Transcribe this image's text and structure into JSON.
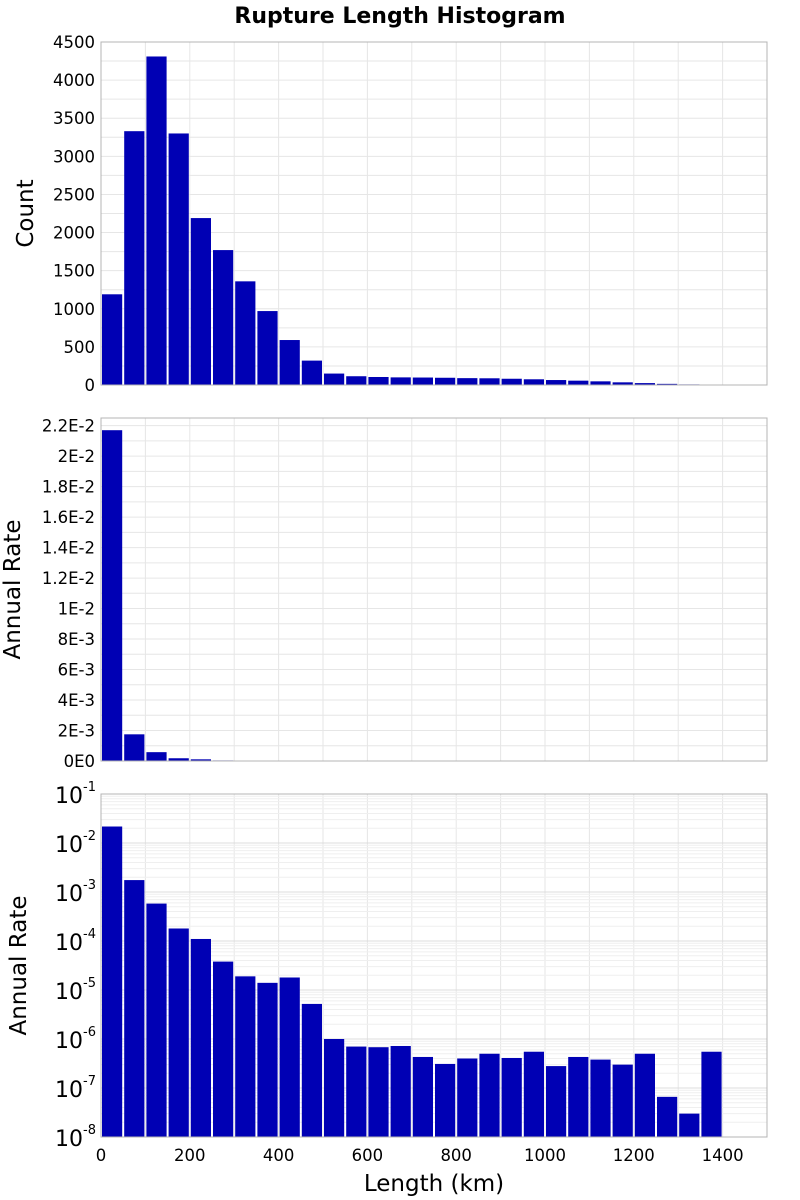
{
  "chart_data": {
    "type": "bar",
    "title": "Rupture Length Histogram",
    "xlabel": "Length (km)",
    "bin_width": 50,
    "xlim": [
      0,
      1500
    ],
    "xticks": [
      0,
      200,
      400,
      600,
      800,
      1000,
      1200,
      1400
    ],
    "bar_color": "#0000b4",
    "grid": true,
    "panels": [
      {
        "ylabel": "Count",
        "scale": "linear",
        "ylim": [
          0,
          4500
        ],
        "yticks": [
          {
            "v": 0,
            "label": "0"
          },
          {
            "v": 500,
            "label": "500"
          },
          {
            "v": 1000,
            "label": "1000"
          },
          {
            "v": 1500,
            "label": "1500"
          },
          {
            "v": 2000,
            "label": "2000"
          },
          {
            "v": 2500,
            "label": "2500"
          },
          {
            "v": 3000,
            "label": "3000"
          },
          {
            "v": 3500,
            "label": "3500"
          },
          {
            "v": 4000,
            "label": "4000"
          },
          {
            "v": 4500,
            "label": "4500"
          }
        ],
        "values": [
          1190,
          3330,
          4310,
          3300,
          2190,
          1770,
          1360,
          970,
          590,
          320,
          150,
          115,
          105,
          100,
          98,
          95,
          90,
          88,
          82,
          75,
          65,
          57,
          48,
          35,
          25,
          15,
          8,
          5,
          0,
          0
        ]
      },
      {
        "ylabel": "Annual Rate",
        "scale": "linear",
        "ylim": [
          0,
          0.0225
        ],
        "yticks": [
          {
            "v": 0,
            "label": "0E0"
          },
          {
            "v": 0.002,
            "label": "2E-3"
          },
          {
            "v": 0.004,
            "label": "4E-3"
          },
          {
            "v": 0.006,
            "label": "6E-3"
          },
          {
            "v": 0.008,
            "label": "8E-3"
          },
          {
            "v": 0.01,
            "label": "1E-2"
          },
          {
            "v": 0.012,
            "label": "1.2E-2"
          },
          {
            "v": 0.014,
            "label": "1.4E-2"
          },
          {
            "v": 0.016,
            "label": "1.6E-2"
          },
          {
            "v": 0.018,
            "label": "1.8E-2"
          },
          {
            "v": 0.02,
            "label": "2E-2"
          },
          {
            "v": 0.022,
            "label": "2.2E-2"
          }
        ],
        "values": [
          0.0217,
          0.00175,
          0.00058,
          0.00018,
          0.00011,
          3.8e-05,
          1.9e-05,
          1.4e-05,
          1.8e-05,
          5.2e-06,
          1e-06,
          7e-07,
          6.8e-07,
          7.2e-07,
          4.3e-07,
          3.1e-07,
          4e-07,
          5e-07,
          4.1e-07,
          5.5e-07,
          2.8e-07,
          4.3e-07,
          3.8e-07,
          3e-07,
          5e-07,
          6.6e-08,
          3e-08,
          5.5e-07,
          0,
          0
        ]
      },
      {
        "ylabel": "Annual Rate",
        "scale": "log",
        "ylim": [
          1e-08,
          0.1
        ],
        "yticks": [
          {
            "v": 1e-08,
            "base": "10",
            "exp": "-8"
          },
          {
            "v": 1e-07,
            "base": "10",
            "exp": "-7"
          },
          {
            "v": 1e-06,
            "base": "10",
            "exp": "-6"
          },
          {
            "v": 1e-05,
            "base": "10",
            "exp": "-5"
          },
          {
            "v": 0.0001,
            "base": "10",
            "exp": "-4"
          },
          {
            "v": 0.001,
            "base": "10",
            "exp": "-3"
          },
          {
            "v": 0.01,
            "base": "10",
            "exp": "-2"
          },
          {
            "v": 0.1,
            "base": "10",
            "exp": "-1"
          }
        ],
        "values": [
          0.0217,
          0.00175,
          0.00058,
          0.00018,
          0.00011,
          3.8e-05,
          1.9e-05,
          1.4e-05,
          1.8e-05,
          5.2e-06,
          1e-06,
          7e-07,
          6.8e-07,
          7.2e-07,
          4.3e-07,
          3.1e-07,
          4e-07,
          5e-07,
          4.1e-07,
          5.5e-07,
          2.8e-07,
          4.3e-07,
          3.8e-07,
          3e-07,
          5e-07,
          6.6e-08,
          3e-08,
          5.5e-07,
          0,
          0
        ]
      }
    ]
  }
}
